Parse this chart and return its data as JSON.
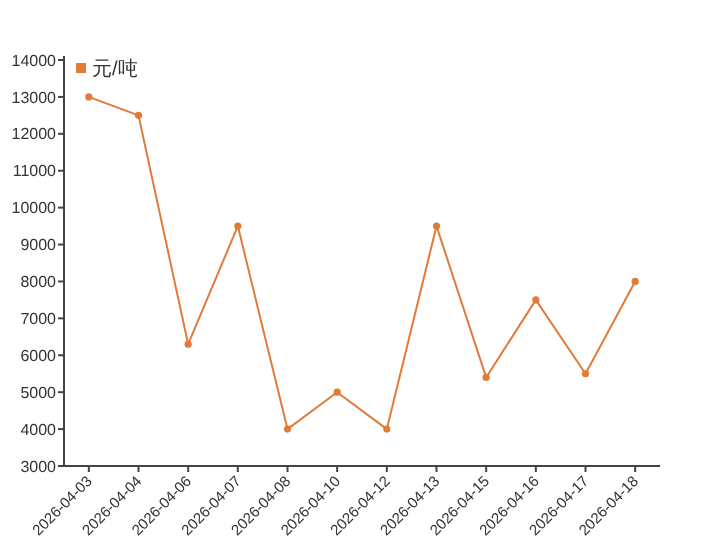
{
  "chart_data": {
    "type": "line",
    "categories": [
      "2026-04-03",
      "2026-04-04",
      "2026-04-06",
      "2026-04-07",
      "2026-04-08",
      "2026-04-10",
      "2026-04-12",
      "2026-04-13",
      "2026-04-15",
      "2026-04-16",
      "2026-04-17",
      "2026-04-18"
    ],
    "series": [
      {
        "name": "元/吨",
        "color": "#e07b39",
        "values": [
          13000,
          12500,
          6300,
          9500,
          4000,
          5000,
          4000,
          9500,
          5400,
          7500,
          5500,
          8000
        ]
      }
    ],
    "ylim": [
      3000,
      14000
    ],
    "yticks": [
      3000,
      4000,
      5000,
      6000,
      7000,
      8000,
      9000,
      10000,
      11000,
      12000,
      13000,
      14000
    ],
    "legend": "top left",
    "marker": "circle",
    "line_style": "solid",
    "grid": false
  }
}
